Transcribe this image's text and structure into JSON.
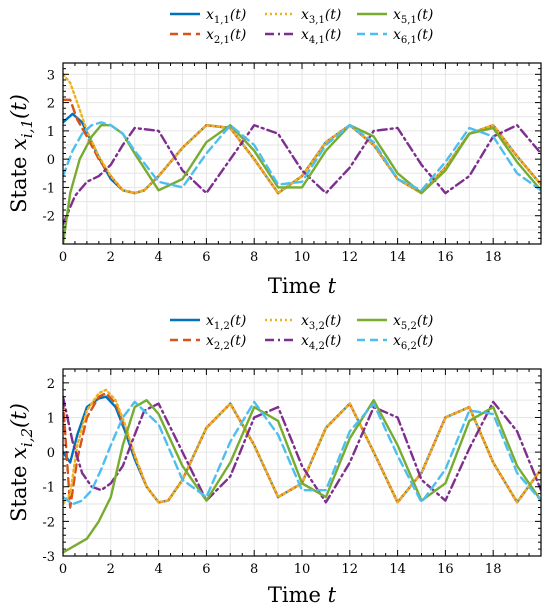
{
  "chart_data": [
    {
      "type": "line",
      "xlabel": "Time t",
      "ylabel": "State x_{i,1}(t)",
      "xlim": [
        0,
        20
      ],
      "ylim": [
        -3,
        3.4
      ],
      "xticks": [
        0,
        2,
        4,
        6,
        8,
        10,
        12,
        14,
        16,
        18
      ],
      "yticks": [
        -2,
        -1,
        0,
        1,
        2,
        3
      ],
      "grid": true,
      "legend": "top-center",
      "series": [
        {
          "name": "x1,1(t)",
          "color": "#0072BD",
          "style": "solid",
          "x": [
            0,
            0.4,
            0.8,
            1.2,
            1.6,
            2,
            2.5,
            3,
            3.4,
            4,
            5,
            6,
            7,
            8,
            9,
            10,
            11,
            12,
            13,
            14,
            15,
            16,
            17,
            18,
            19,
            20
          ],
          "y": [
            1.3,
            1.6,
            1.3,
            0.6,
            -0.1,
            -0.7,
            -1.1,
            -1.2,
            -1.1,
            -0.6,
            0.4,
            1.2,
            1.1,
            0.0,
            -1.2,
            -0.6,
            0.6,
            1.2,
            0.5,
            -0.7,
            -1.2,
            -0.3,
            0.9,
            1.2,
            0.1,
            -0.9
          ]
        },
        {
          "name": "x2,1(t)",
          "color": "#D95319",
          "style": "dashed",
          "x": [
            0,
            0.3,
            0.6,
            1,
            1.5,
            2,
            2.5,
            3,
            3.4,
            4,
            5,
            6,
            7,
            8,
            9,
            10,
            11,
            12,
            13,
            14,
            15,
            16,
            17,
            18,
            19,
            20
          ],
          "y": [
            2.1,
            2.1,
            1.4,
            0.8,
            0.0,
            -0.6,
            -1.1,
            -1.2,
            -1.1,
            -0.6,
            0.4,
            1.2,
            1.1,
            0.0,
            -1.2,
            -0.6,
            0.6,
            1.2,
            0.5,
            -0.7,
            -1.2,
            -0.3,
            0.9,
            1.2,
            0.1,
            -0.9
          ]
        },
        {
          "name": "x3,1(t)",
          "color": "#EDB120",
          "style": "dotted",
          "x": [
            0,
            0.3,
            0.6,
            1,
            1.5,
            2,
            2.5,
            3,
            3.4,
            4,
            5,
            6,
            7,
            8,
            9,
            10,
            11,
            12,
            13,
            14,
            15,
            16,
            17,
            18,
            19,
            20
          ],
          "y": [
            3.0,
            2.7,
            2.0,
            1.0,
            0.1,
            -0.6,
            -1.1,
            -1.2,
            -1.1,
            -0.6,
            0.4,
            1.2,
            1.1,
            0.0,
            -1.2,
            -0.6,
            0.6,
            1.2,
            0.5,
            -0.7,
            -1.2,
            -0.3,
            0.9,
            1.2,
            0.1,
            -0.9
          ]
        },
        {
          "name": "x4,1(t)",
          "color": "#7E2F8E",
          "style": "dashdot",
          "x": [
            0,
            0.5,
            1,
            1.5,
            2,
            2.5,
            3,
            4,
            5,
            6,
            7,
            8,
            9,
            10,
            11,
            12,
            13,
            14,
            15,
            16,
            17,
            18,
            19,
            20
          ],
          "y": [
            -2.3,
            -1.3,
            -0.8,
            -0.6,
            -0.2,
            0.5,
            1.1,
            1.0,
            -0.4,
            -1.2,
            0.0,
            1.2,
            0.9,
            -0.4,
            -1.2,
            -0.3,
            1.0,
            1.1,
            -0.2,
            -1.2,
            -0.6,
            0.8,
            1.2,
            0.2
          ]
        },
        {
          "name": "x5,1(t)",
          "color": "#77AC30",
          "style": "solid",
          "x": [
            0,
            0.3,
            0.7,
            1.2,
            1.6,
            2,
            2.5,
            3,
            4,
            5,
            6,
            7,
            8,
            9,
            10,
            11,
            12,
            13,
            14,
            15,
            16,
            17,
            18,
            19,
            20
          ],
          "y": [
            -3.0,
            -1.2,
            0.0,
            0.8,
            1.2,
            1.2,
            0.9,
            0.2,
            -1.1,
            -0.7,
            0.6,
            1.2,
            0.3,
            -1.0,
            -1.0,
            0.3,
            1.2,
            0.8,
            -0.5,
            -1.2,
            -0.4,
            0.9,
            1.1,
            -0.1,
            -1.1
          ]
        },
        {
          "name": "x6,1(t)",
          "color": "#4DBEEE",
          "style": "dashed",
          "x": [
            0,
            0.4,
            0.8,
            1.2,
            1.6,
            2,
            2.5,
            3,
            4,
            5,
            6,
            7,
            8,
            9,
            10,
            11,
            12,
            13,
            14,
            15,
            16,
            17,
            18,
            19,
            20
          ],
          "y": [
            -0.6,
            0.3,
            0.9,
            1.2,
            1.3,
            1.2,
            0.9,
            0.3,
            -0.8,
            -1.0,
            0.2,
            1.2,
            0.5,
            -0.9,
            -0.8,
            0.5,
            1.2,
            0.6,
            -0.7,
            -1.1,
            -0.1,
            1.1,
            0.8,
            -0.5,
            -1.1
          ]
        }
      ],
      "legend_entries": [
        {
          "base": "x",
          "sub": "1,1",
          "arg": "(t)"
        },
        {
          "base": "x",
          "sub": "3,1",
          "arg": "(t)"
        },
        {
          "base": "x",
          "sub": "5,1",
          "arg": "(t)"
        },
        {
          "base": "x",
          "sub": "2,1",
          "arg": "(t)"
        },
        {
          "base": "x",
          "sub": "4,1",
          "arg": "(t)"
        },
        {
          "base": "x",
          "sub": "6,1",
          "arg": "(t)"
        }
      ],
      "ylabel_parts": {
        "prefix": "State ",
        "base": "x",
        "sub": "i,1",
        "arg": "(t)"
      },
      "xlabel_parts": {
        "prefix": "Time ",
        "var": "t"
      }
    },
    {
      "type": "line",
      "xlabel": "Time t",
      "ylabel": "State x_{i,2}(t)",
      "xlim": [
        0,
        20
      ],
      "ylim": [
        -3,
        2.4
      ],
      "xticks": [
        0,
        2,
        4,
        6,
        8,
        10,
        12,
        14,
        16,
        18
      ],
      "yticks": [
        -3,
        -2,
        -1,
        0,
        1,
        2
      ],
      "grid": true,
      "legend": "top-center",
      "series": [
        {
          "name": "x1,2(t)",
          "color": "#0072BD",
          "style": "solid",
          "x": [
            0,
            0.3,
            0.6,
            1,
            1.5,
            1.8,
            2.2,
            2.6,
            3,
            3.5,
            4,
            4.4,
            5,
            6,
            7,
            8,
            9,
            10,
            11,
            12,
            13,
            14,
            15,
            16,
            17,
            18,
            19,
            20
          ],
          "y": [
            0.0,
            -0.3,
            0.5,
            1.3,
            1.55,
            1.6,
            1.3,
            0.6,
            -0.2,
            -1.0,
            -1.45,
            -1.4,
            -0.8,
            0.7,
            1.4,
            0.2,
            -1.3,
            -0.9,
            0.7,
            1.4,
            0.0,
            -1.45,
            -0.6,
            1.0,
            1.3,
            -0.3,
            -1.45,
            -0.5
          ]
        },
        {
          "name": "x2,2(t)",
          "color": "#D95319",
          "style": "dashed",
          "x": [
            0,
            0.3,
            0.6,
            1,
            1.5,
            1.8,
            2.2,
            2.6,
            3,
            3.5,
            4,
            4.4,
            5,
            6,
            7,
            8,
            9,
            10,
            11,
            12,
            13,
            14,
            15,
            16,
            17,
            18,
            19,
            20
          ],
          "y": [
            1.5,
            -1.6,
            -0.2,
            1.0,
            1.6,
            1.7,
            1.4,
            0.7,
            -0.1,
            -1.0,
            -1.45,
            -1.4,
            -0.8,
            0.7,
            1.4,
            0.2,
            -1.3,
            -0.9,
            0.7,
            1.4,
            0.0,
            -1.45,
            -0.6,
            1.0,
            1.3,
            -0.3,
            -1.45,
            -0.5
          ]
        },
        {
          "name": "x3,2(t)",
          "color": "#EDB120",
          "style": "dotted",
          "x": [
            0,
            0.3,
            0.6,
            1,
            1.5,
            1.8,
            2.2,
            2.6,
            3,
            3.5,
            4,
            4.4,
            5,
            6,
            7,
            8,
            9,
            10,
            11,
            12,
            13,
            14,
            15,
            16,
            17,
            18,
            19,
            20
          ],
          "y": [
            -1.5,
            -1.2,
            0.2,
            1.2,
            1.7,
            1.8,
            1.5,
            0.8,
            -0.1,
            -1.0,
            -1.45,
            -1.4,
            -0.8,
            0.7,
            1.4,
            0.2,
            -1.3,
            -0.9,
            0.7,
            1.4,
            0.0,
            -1.45,
            -0.6,
            1.0,
            1.3,
            -0.3,
            -1.45,
            -0.5
          ]
        },
        {
          "name": "x4,2(t)",
          "color": "#7E2F8E",
          "style": "dashdot",
          "x": [
            0,
            0.4,
            0.8,
            1.2,
            1.6,
            2,
            2.5,
            3,
            3.4,
            4,
            5,
            6,
            7,
            8,
            9,
            10,
            11,
            12,
            13,
            14,
            15,
            16,
            17,
            18,
            19,
            20
          ],
          "y": [
            1.6,
            0.3,
            -0.6,
            -1.0,
            -1.1,
            -0.9,
            -0.4,
            0.5,
            1.2,
            1.4,
            0.0,
            -1.4,
            -0.7,
            1.0,
            1.3,
            -0.4,
            -1.45,
            -0.3,
            1.3,
            1.0,
            -0.8,
            -1.4,
            0.1,
            1.45,
            0.6,
            -1.1
          ]
        },
        {
          "name": "x5,2(t)",
          "color": "#77AC30",
          "style": "solid",
          "x": [
            0,
            0.5,
            1,
            1.5,
            2,
            2.5,
            3,
            3.5,
            4,
            5,
            6,
            7,
            8,
            9,
            10,
            11,
            12,
            13,
            14,
            15,
            16,
            17,
            18,
            19,
            20
          ],
          "y": [
            -2.9,
            -2.7,
            -2.5,
            -2.0,
            -1.3,
            0.2,
            1.3,
            1.5,
            1.1,
            -0.4,
            -1.4,
            -0.3,
            1.3,
            0.9,
            -0.9,
            -1.3,
            0.4,
            1.5,
            0.2,
            -1.4,
            -0.9,
            0.9,
            1.3,
            -0.4,
            -1.4
          ]
        },
        {
          "name": "x6,2(t)",
          "color": "#4DBEEE",
          "style": "dashed",
          "x": [
            0,
            0.4,
            0.8,
            1.2,
            1.6,
            2,
            2.5,
            3,
            4,
            5,
            6,
            7,
            8,
            9,
            10,
            11,
            12,
            13,
            14,
            15,
            16,
            17,
            18,
            19,
            20
          ],
          "y": [
            -1.3,
            -1.5,
            -1.4,
            -1.1,
            -0.5,
            0.2,
            1.0,
            1.45,
            0.8,
            -0.8,
            -1.3,
            0.3,
            1.45,
            0.5,
            -1.1,
            -1.1,
            0.6,
            1.4,
            -0.1,
            -1.45,
            -0.5,
            1.2,
            1.1,
            -0.6,
            -1.4
          ]
        }
      ],
      "legend_entries": [
        {
          "base": "x",
          "sub": "1,2",
          "arg": "(t)"
        },
        {
          "base": "x",
          "sub": "3,2",
          "arg": "(t)"
        },
        {
          "base": "x",
          "sub": "5,2",
          "arg": "(t)"
        },
        {
          "base": "x",
          "sub": "2,2",
          "arg": "(t)"
        },
        {
          "base": "x",
          "sub": "4,2",
          "arg": "(t)"
        },
        {
          "base": "x",
          "sub": "6,2",
          "arg": "(t)"
        }
      ],
      "ylabel_parts": {
        "prefix": "State ",
        "base": "x",
        "sub": "i,2",
        "arg": "(t)"
      },
      "xlabel_parts": {
        "prefix": "Time ",
        "var": "t"
      }
    }
  ]
}
